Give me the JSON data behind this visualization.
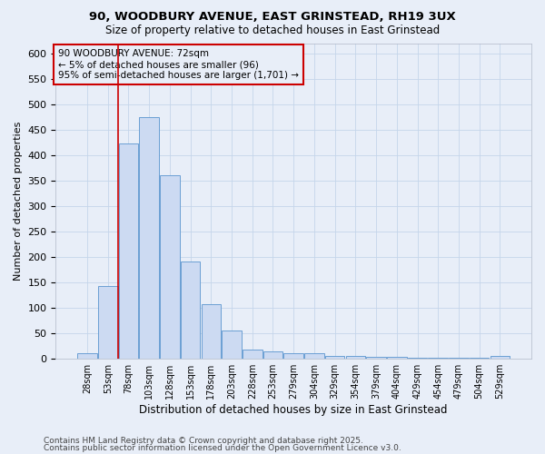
{
  "title1": "90, WOODBURY AVENUE, EAST GRINSTEAD, RH19 3UX",
  "title2": "Size of property relative to detached houses in East Grinstead",
  "xlabel": "Distribution of detached houses by size in East Grinstead",
  "ylabel": "Number of detached properties",
  "bar_labels": [
    "28sqm",
    "53sqm",
    "78sqm",
    "103sqm",
    "128sqm",
    "153sqm",
    "178sqm",
    "203sqm",
    "228sqm",
    "253sqm",
    "279sqm",
    "304sqm",
    "329sqm",
    "354sqm",
    "379sqm",
    "404sqm",
    "429sqm",
    "454sqm",
    "479sqm",
    "504sqm",
    "529sqm"
  ],
  "bar_values": [
    10,
    142,
    422,
    475,
    360,
    190,
    107,
    54,
    17,
    13,
    10,
    10,
    4,
    4,
    3,
    3,
    1,
    1,
    1,
    1,
    4
  ],
  "bar_color": "#ccdaf2",
  "bar_edge_color": "#6b9fd4",
  "grid_color": "#c5d5ea",
  "background_color": "#e8eef8",
  "red_line_index": 2,
  "annotation_line1": "90 WOODBURY AVENUE: 72sqm",
  "annotation_line2": "← 5% of detached houses are smaller (96)",
  "annotation_line3": "95% of semi-detached houses are larger (1,701) →",
  "red_line_color": "#cc0000",
  "footer_text1": "Contains HM Land Registry data © Crown copyright and database right 2025.",
  "footer_text2": "Contains public sector information licensed under the Open Government Licence v3.0.",
  "ylim": [
    0,
    620
  ],
  "yticks": [
    0,
    50,
    100,
    150,
    200,
    250,
    300,
    350,
    400,
    450,
    500,
    550,
    600
  ]
}
